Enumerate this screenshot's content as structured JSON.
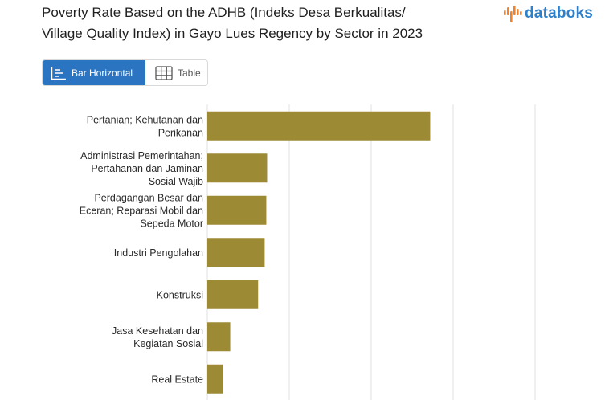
{
  "header": {
    "title_line1": "Poverty Rate Based on the ADHB (Indeks Desa Berkualitas/",
    "title_line2": "Village Quality Index) in Gayo Lues Regency by Sector in 2023",
    "logo_text": "databoks"
  },
  "view_tabs": {
    "bar_label": "Bar Horizontal",
    "table_label": "Table",
    "active": "bar"
  },
  "colors": {
    "bar": "#9c8a35",
    "grid": "#e2e2e2",
    "active_tab": "#2b74c1",
    "logo_blue": "#2f80c9",
    "logo_orange": "#f0822e"
  },
  "chart_data": {
    "type": "bar",
    "orientation": "horizontal",
    "title": "Poverty Rate Based on the ADHB (Indeks Desa Berkualitas/ Village Quality Index) in Gayo Lues Regency by Sector in 2023",
    "categories": [
      [
        "Pertanian; Kehutanan dan",
        "Perikanan"
      ],
      [
        "Administrasi Pemerintahan;",
        "Pertahanan dan Jaminan",
        "Sosial Wajib"
      ],
      [
        "Perdagangan Besar dan",
        "Eceran; Reparasi Mobil dan",
        "Sepeda Motor"
      ],
      [
        "Industri Pengolahan"
      ],
      [
        "Konstruksi"
      ],
      [
        "Jasa Kesehatan dan",
        "Kegiatan Sosial"
      ],
      [
        "Real Estate"
      ]
    ],
    "values": [
      27.2,
      7.3,
      7.2,
      7.0,
      6.2,
      2.8,
      1.9
    ],
    "xlim": [
      0,
      40
    ],
    "grid": true,
    "legend": "none"
  }
}
